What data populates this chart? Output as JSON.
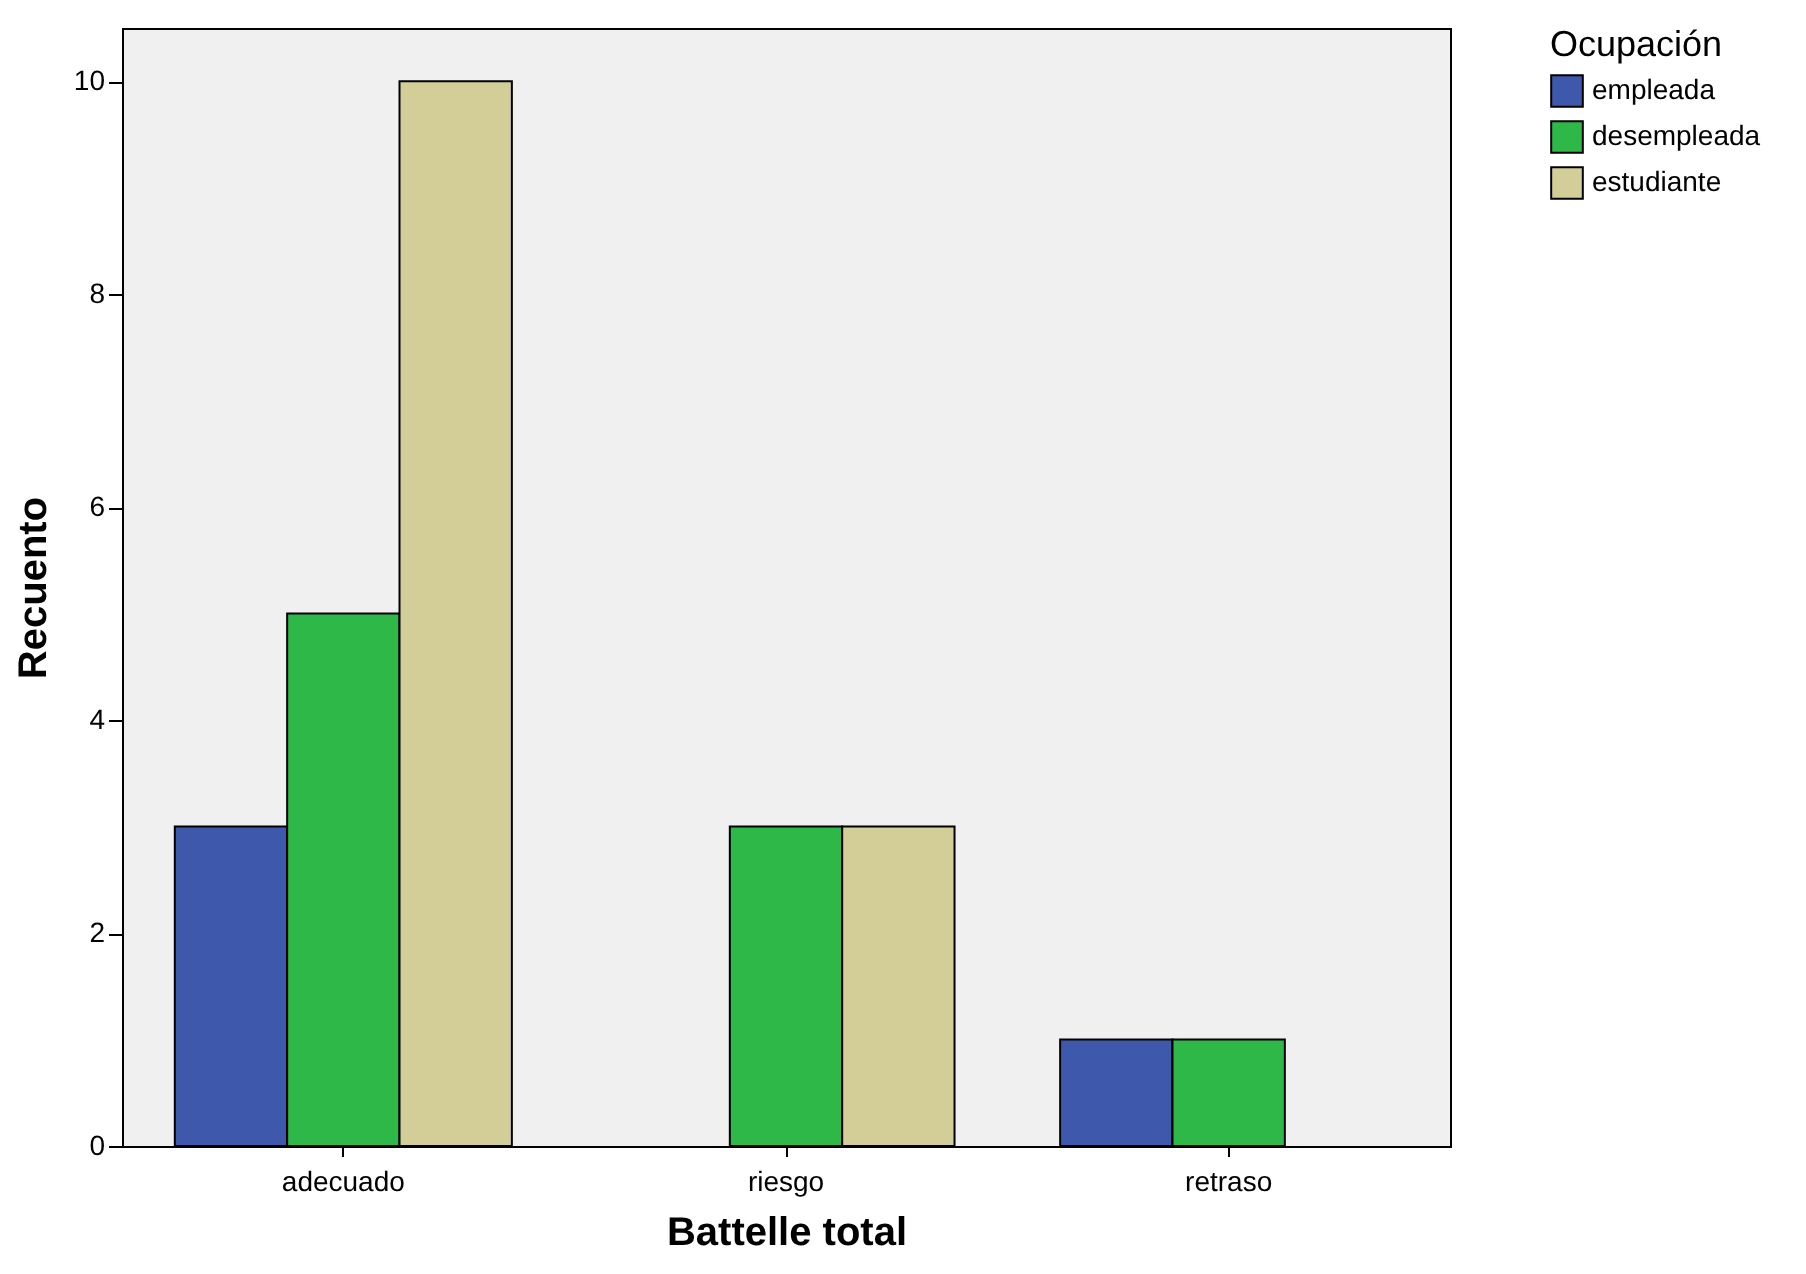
{
  "chart_data": {
    "type": "bar",
    "xlabel": "Battelle  total",
    "ylabel": "Recuento",
    "legend_title": "Ocupación",
    "categories": [
      "adecuado",
      "riesgo",
      "retraso"
    ],
    "series": [
      {
        "name": "empleada",
        "color": "#3e58ac",
        "values": [
          3,
          null,
          1
        ]
      },
      {
        "name": "desempleada",
        "color": "#2eb848",
        "values": [
          5,
          3,
          1
        ]
      },
      {
        "name": "estudiante",
        "color": "#d3ce97",
        "values": [
          10,
          3,
          null
        ]
      }
    ],
    "ylim": [
      0,
      10.5
    ],
    "yticks": [
      0,
      2,
      4,
      6,
      8,
      10
    ],
    "grid": false,
    "legend": "top right"
  }
}
